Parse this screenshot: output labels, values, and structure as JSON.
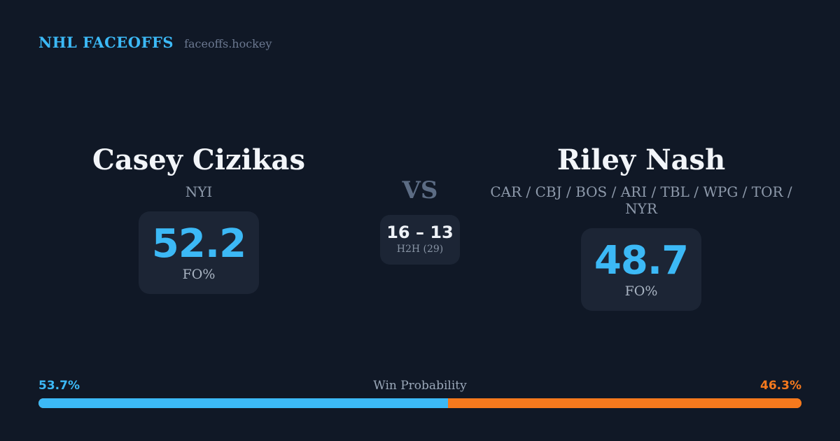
{
  "header": {
    "brand": "NHL FACEOFFS",
    "site": "faceoffs.hockey"
  },
  "players": {
    "left": {
      "name": "Casey Cizikas",
      "teams": "NYI",
      "fo_value": "52.2",
      "fo_label": "FO%"
    },
    "right": {
      "name": "Riley Nash",
      "teams": "CAR / CBJ / BOS / ARI / TBL / WPG / TOR / NYR",
      "fo_value": "48.7",
      "fo_label": "FO%"
    }
  },
  "matchup": {
    "vs_label": "VS",
    "h2h_score": "16 – 13",
    "h2h_label": "H2H (29)"
  },
  "win_probability": {
    "label": "Win Probability",
    "left_pct_label": "53.7%",
    "right_pct_label": "46.3%",
    "left_pct": 53.7,
    "right_pct": 46.3
  },
  "colors": {
    "background": "#101826",
    "card": "#1c2535",
    "accent_blue": "#3cb9f6",
    "accent_orange": "#f5791d",
    "text_primary": "#f2f5f9",
    "text_muted": "#8e9aab",
    "vs_gray": "#5c6c84"
  }
}
